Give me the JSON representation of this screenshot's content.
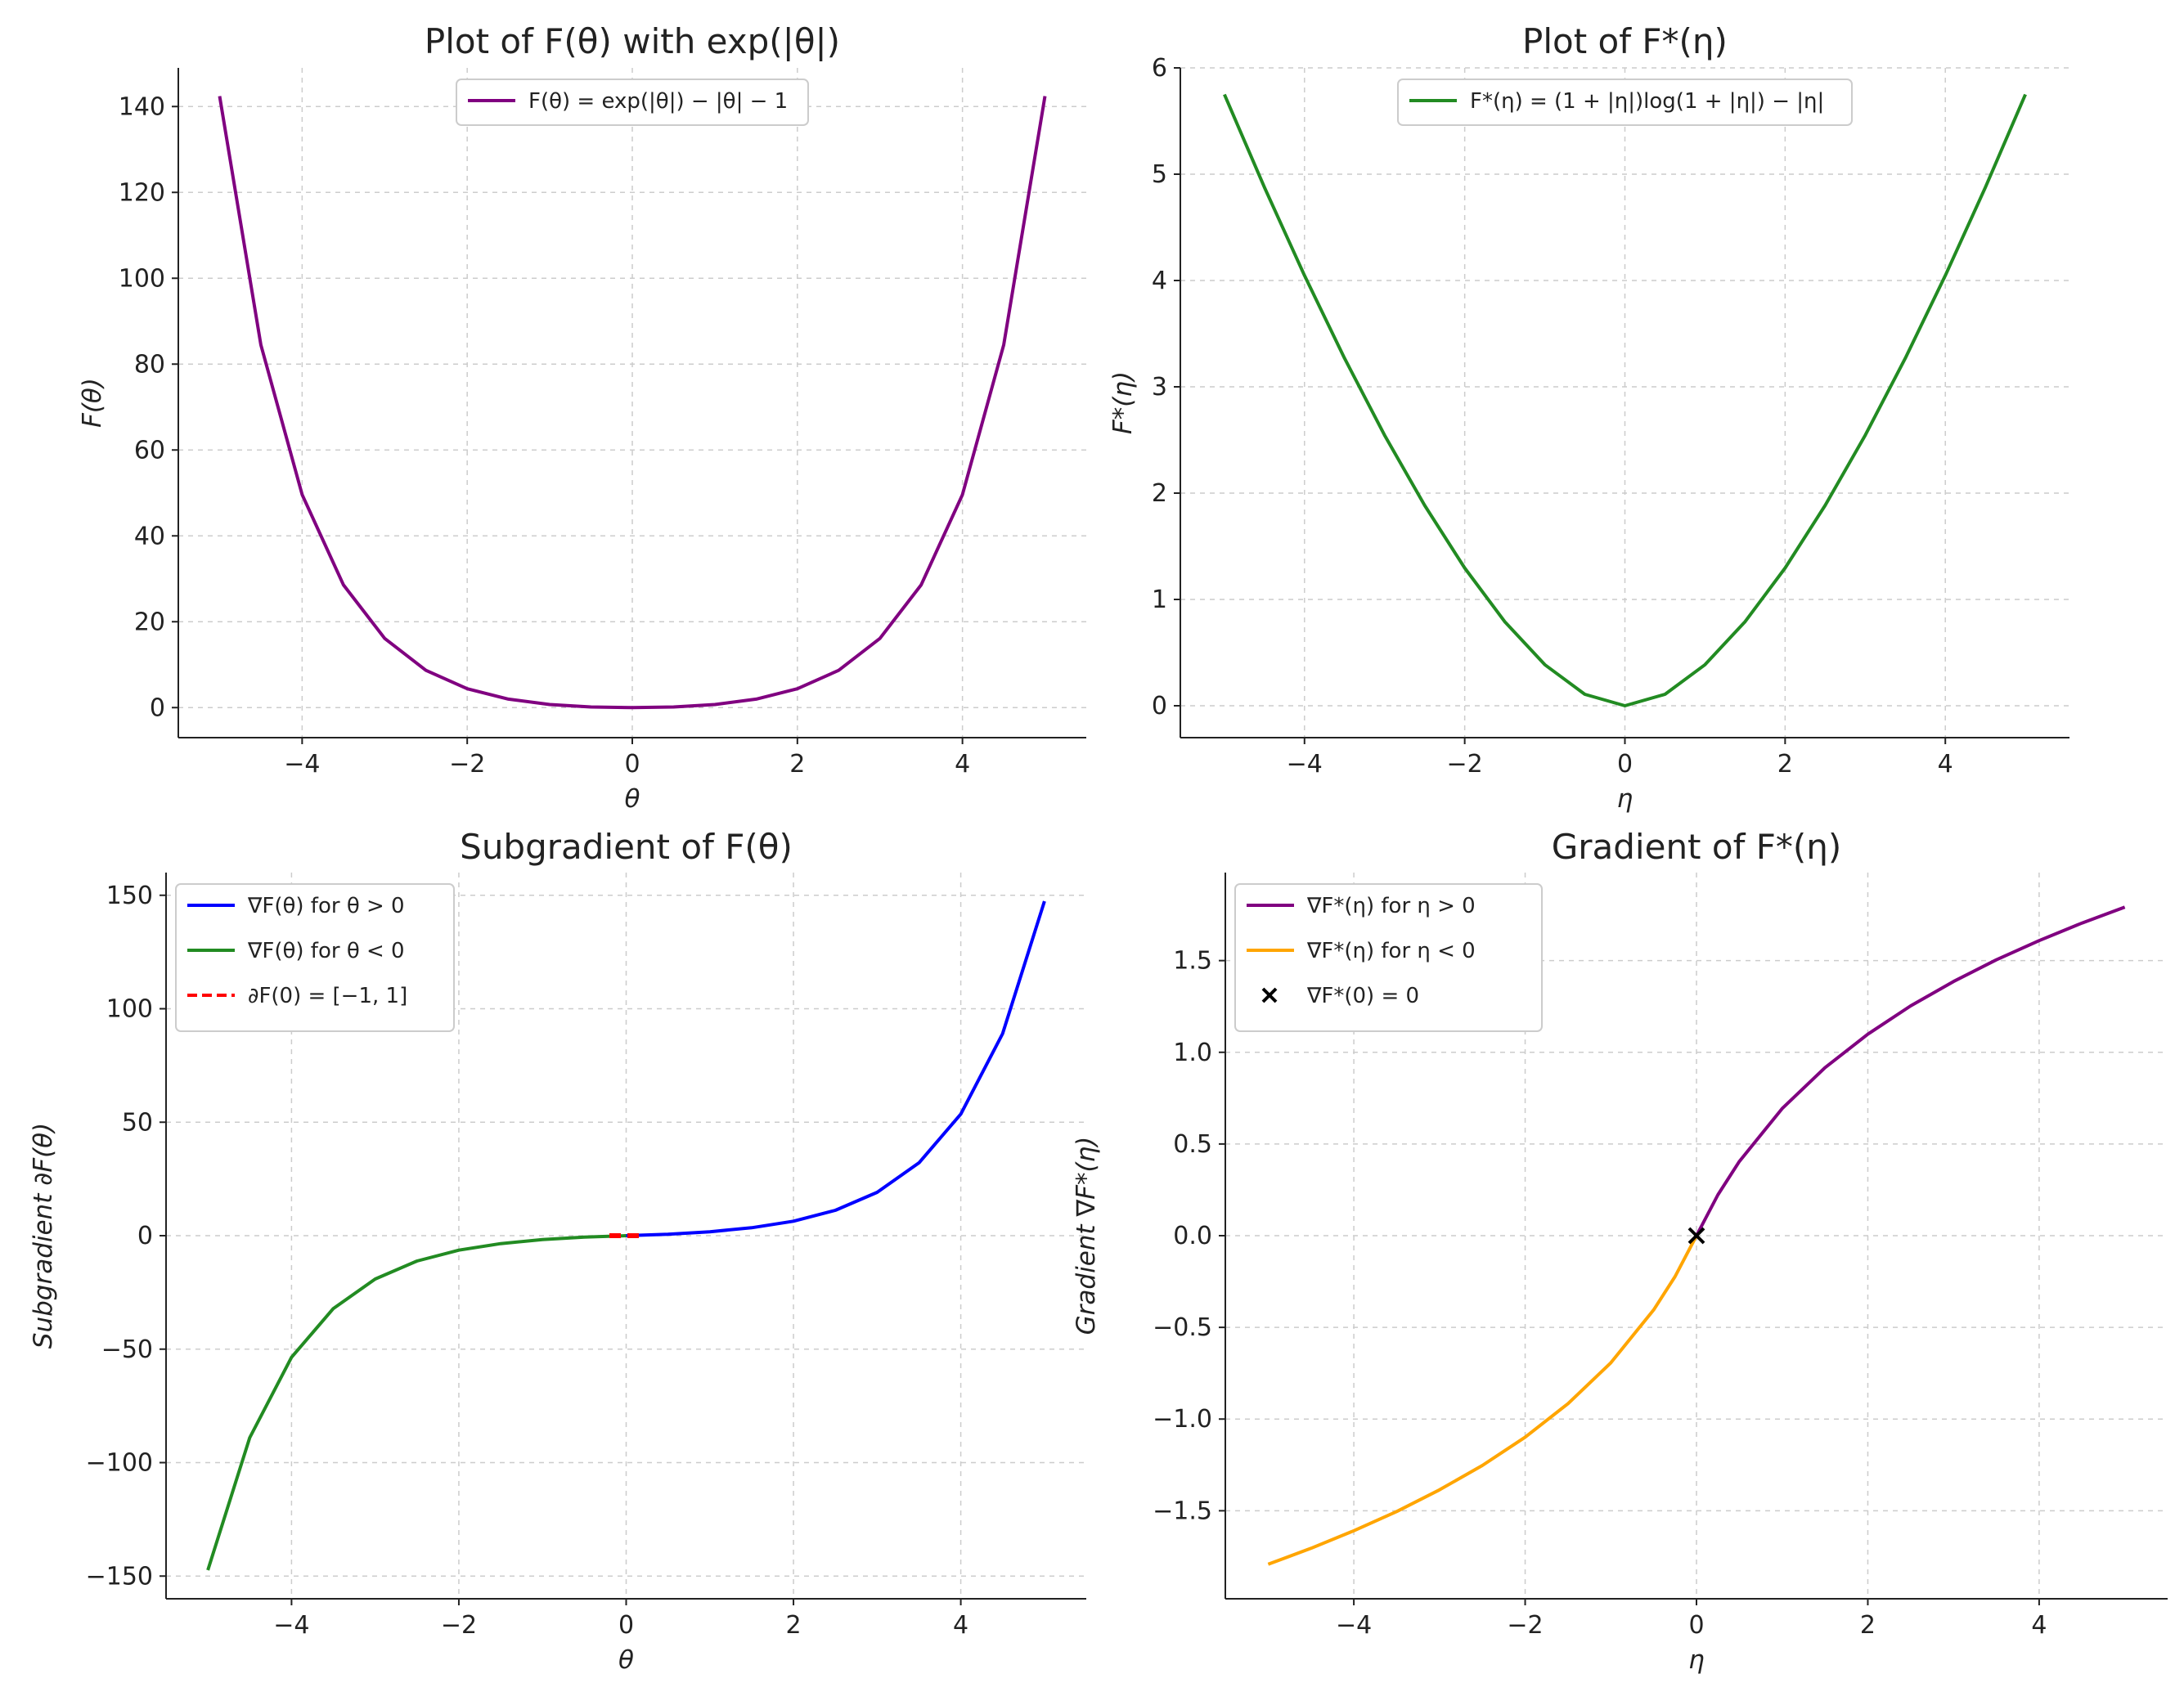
{
  "chart_data": [
    {
      "type": "line",
      "title": "Plot of F(θ) with exp(|θ|)",
      "xlabel": "θ",
      "ylabel": "F(θ)",
      "xlim": [
        -5.5,
        5.5
      ],
      "ylim": [
        -7,
        149
      ],
      "xticks": [
        -4,
        -2,
        0,
        2,
        4
      ],
      "xtick_labels": [
        "−4",
        "−2",
        "0",
        "2",
        "4"
      ],
      "yticks": [
        0,
        20,
        40,
        60,
        80,
        100,
        120,
        140
      ],
      "ytick_labels": [
        "0",
        "20",
        "40",
        "60",
        "80",
        "100",
        "120",
        "140"
      ],
      "grid": true,
      "legend_position": "top-center",
      "series": [
        {
          "name": "F(θ) = exp(|θ|) − |θ| − 1",
          "color": "#800080",
          "style": "solid",
          "x": [
            -5,
            -4.5,
            -4,
            -3.5,
            -3,
            -2.5,
            -2,
            -1.5,
            -1,
            -0.5,
            0,
            0.5,
            1,
            1.5,
            2,
            2.5,
            3,
            3.5,
            4,
            4.5,
            5
          ],
          "y": [
            142.4,
            84.5,
            49.6,
            28.6,
            16.1,
            8.68,
            4.39,
            1.98,
            0.72,
            0.15,
            0,
            0.15,
            0.72,
            1.98,
            4.39,
            8.68,
            16.1,
            28.6,
            49.6,
            84.5,
            142.4
          ]
        }
      ]
    },
    {
      "type": "line",
      "title": "Plot of F*(η)",
      "xlabel": "η",
      "ylabel": "F*(η)",
      "xlim": [
        -5.55,
        5.55
      ],
      "ylim": [
        -0.3,
        6
      ],
      "xticks": [
        -4,
        -2,
        0,
        2,
        4
      ],
      "xtick_labels": [
        "−4",
        "−2",
        "0",
        "2",
        "4"
      ],
      "yticks": [
        0,
        1,
        2,
        3,
        4,
        5,
        6
      ],
      "ytick_labels": [
        "0",
        "1",
        "2",
        "3",
        "4",
        "5",
        "6"
      ],
      "grid": true,
      "legend_position": "top-center",
      "series": [
        {
          "name": "F*(η) = (1 + |η|)log(1 + |η|) − |η|",
          "color": "#228B22",
          "style": "solid",
          "x": [
            -5,
            -4.5,
            -4,
            -3.5,
            -3,
            -2.5,
            -2,
            -1.5,
            -1,
            -0.5,
            0,
            0.5,
            1,
            1.5,
            2,
            2.5,
            3,
            3.5,
            4,
            4.5,
            5
          ],
          "y": [
            5.75,
            4.876,
            4.047,
            3.268,
            2.545,
            1.885,
            1.296,
            0.791,
            0.386,
            0.108,
            0,
            0.108,
            0.386,
            0.791,
            1.296,
            1.885,
            2.545,
            3.268,
            4.047,
            4.876,
            5.75
          ]
        }
      ]
    },
    {
      "type": "line",
      "title": "Subgradient of F(θ)",
      "xlabel": "θ",
      "ylabel": "Subgradient ∂F(θ)",
      "xlim": [
        -5.5,
        5.5
      ],
      "ylim": [
        -160,
        160
      ],
      "xticks": [
        -4,
        -2,
        0,
        2,
        4
      ],
      "xtick_labels": [
        "−4",
        "−2",
        "0",
        "2",
        "4"
      ],
      "yticks": [
        -150,
        -100,
        -50,
        0,
        50,
        100,
        150
      ],
      "ytick_labels": [
        "−150",
        "−100",
        "−50",
        "0",
        "50",
        "100",
        "150"
      ],
      "grid": true,
      "legend_position": "top-left",
      "series": [
        {
          "name": "∇F(θ) for θ > 0",
          "color": "#0000ff",
          "style": "solid",
          "x": [
            0,
            0.5,
            1,
            1.5,
            2,
            2.5,
            3,
            3.5,
            4,
            4.5,
            5
          ],
          "y": [
            0,
            0.65,
            1.72,
            3.48,
            6.39,
            11.18,
            19.09,
            32.12,
            53.6,
            89.0,
            147.4
          ]
        },
        {
          "name": "∇F(θ) for θ < 0",
          "color": "#228B22",
          "style": "solid",
          "x": [
            -5,
            -4.5,
            -4,
            -3.5,
            -3,
            -2.5,
            -2,
            -1.5,
            -1,
            -0.5,
            0
          ],
          "y": [
            -147.4,
            -89.0,
            -53.6,
            -32.12,
            -19.09,
            -11.18,
            -6.39,
            -3.48,
            -1.72,
            -0.65,
            0
          ]
        },
        {
          "name": "∂F(0) = [−1, 1]",
          "color": "#ff0000",
          "style": "dashed",
          "x": [
            -0.2,
            0.2
          ],
          "y": [
            0,
            0
          ]
        }
      ]
    },
    {
      "type": "line",
      "title": "Gradient of F*(η)",
      "xlabel": "η",
      "ylabel": "Gradient ∇F*(η)",
      "xlim": [
        -5.5,
        5.5
      ],
      "ylim": [
        -1.98,
        1.98
      ],
      "xticks": [
        -4,
        -2,
        0,
        2,
        4
      ],
      "xtick_labels": [
        "−4",
        "−2",
        "0",
        "2",
        "4"
      ],
      "yticks": [
        -1.5,
        -1.0,
        -0.5,
        0.0,
        0.5,
        1.0,
        1.5
      ],
      "ytick_labels": [
        "−1.5",
        "−1.0",
        "−0.5",
        "0.0",
        "0.5",
        "1.0",
        "1.5"
      ],
      "grid": true,
      "legend_position": "top-left",
      "series": [
        {
          "name": "∇F*(η) for η > 0",
          "color": "#800080",
          "style": "solid",
          "x": [
            0,
            0.25,
            0.5,
            1,
            1.5,
            2,
            2.5,
            3,
            3.5,
            4,
            4.5,
            5
          ],
          "y": [
            0,
            0.223,
            0.405,
            0.693,
            0.916,
            1.099,
            1.253,
            1.386,
            1.504,
            1.609,
            1.705,
            1.792
          ]
        },
        {
          "name": "∇F*(η) for η < 0",
          "color": "#FFA500",
          "style": "solid",
          "x": [
            -5,
            -4.5,
            -4,
            -3.5,
            -3,
            -2.5,
            -2,
            -1.5,
            -1,
            -0.5,
            -0.25,
            0
          ],
          "y": [
            -1.792,
            -1.705,
            -1.609,
            -1.504,
            -1.386,
            -1.253,
            -1.099,
            -0.916,
            -0.693,
            -0.405,
            -0.223,
            0
          ]
        },
        {
          "name": "∇F*(0) = 0",
          "color": "#000000",
          "style": "marker-x",
          "x": [
            0
          ],
          "y": [
            0
          ]
        }
      ]
    }
  ]
}
